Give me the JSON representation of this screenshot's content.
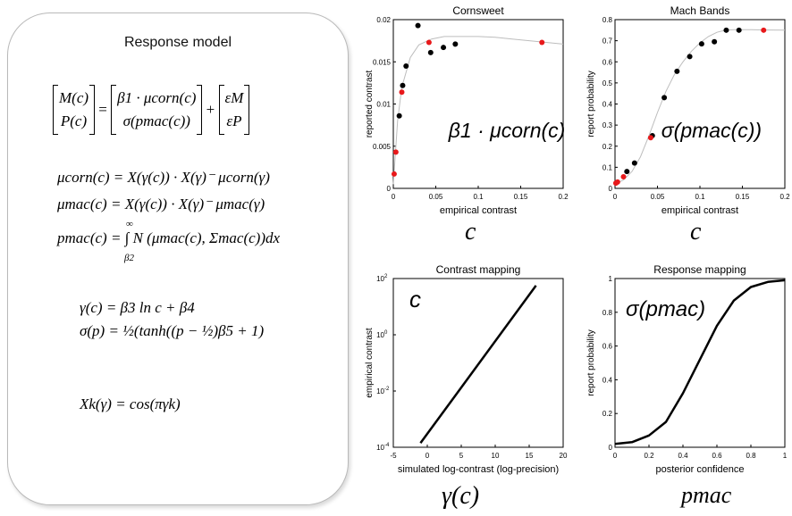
{
  "model": {
    "title": "Response model",
    "eq1": {
      "lhs_top": "M(c)",
      "lhs_bot": "P(c)",
      "rhs_top": "β1 · μcorn(c)",
      "rhs_bot": "σ(pmac(c))",
      "err_top": "εM",
      "err_bot": "εP"
    },
    "eq2": "μcorn(c) = X(γ(c)) · X(γ)⁻ μcorn(γ)",
    "eq3": "μmac(c) = X(γ(c)) · X(γ)⁻ μmac(γ)",
    "eq4": "pmac(c) = ∫ N (μmac(c), Σmac(c))dx",
    "eq4_lower": "β2",
    "eq4_upper": "∞",
    "eq5": "γ(c) = β3 ln c + β4",
    "eq6": "σ(p) = ½(tanh((p − ½)β5 + 1)",
    "eq7": "Xk(γ) = cos(πγk)"
  },
  "annotations": {
    "c1": "c",
    "c2": "c",
    "gamma": "γ(c)",
    "pmac": "pmac"
  },
  "chart_data": [
    {
      "id": "cornsweet",
      "type": "scatter",
      "title": "Cornsweet",
      "xlabel": "empirical contrast",
      "ylabel": "reported contrast",
      "xlim": [
        0,
        0.2
      ],
      "ylim": [
        0,
        0.02
      ],
      "xticks": [
        "0",
        "0.05",
        "0.1",
        "0.15",
        "0.2"
      ],
      "yticks": [
        "0",
        "0.005",
        "0.01",
        "0.015",
        "0.02"
      ],
      "inset": "β1 · μcorn(c)",
      "fit": {
        "x": [
          0.0,
          0.005,
          0.01,
          0.02,
          0.03,
          0.045,
          0.06,
          0.08,
          0.1,
          0.12,
          0.14,
          0.16,
          0.18,
          0.2
        ],
        "y": [
          0.0005,
          0.008,
          0.012,
          0.0155,
          0.017,
          0.0177,
          0.018,
          0.018,
          0.018,
          0.0179,
          0.0177,
          0.0175,
          0.0173,
          0.0171
        ]
      },
      "series": [
        {
          "color": "#000000",
          "x": [
            0.007,
            0.011,
            0.015,
            0.029,
            0.044,
            0.059,
            0.073
          ],
          "y": [
            0.0086,
            0.0122,
            0.0145,
            0.0193,
            0.0161,
            0.0167,
            0.0171
          ]
        },
        {
          "color": "#e8191b",
          "x": [
            0.001,
            0.003,
            0.01,
            0.042,
            0.175
          ],
          "y": [
            0.0017,
            0.0043,
            0.0114,
            0.0173,
            0.0173
          ]
        }
      ]
    },
    {
      "id": "mach",
      "type": "scatter",
      "title": "Mach Bands",
      "xlabel": "empirical contrast",
      "ylabel": "report probability",
      "xlim": [
        0,
        0.2
      ],
      "ylim": [
        0,
        0.8
      ],
      "xticks": [
        "0",
        "0.05",
        "0.1",
        "0.15",
        "0.2"
      ],
      "yticks": [
        "0",
        "0.1",
        "0.2",
        "0.3",
        "0.4",
        "0.5",
        "0.6",
        "0.7",
        "0.8"
      ],
      "inset": "σ(pmac(c))",
      "fit": {
        "x": [
          0.0,
          0.01,
          0.02,
          0.03,
          0.04,
          0.05,
          0.06,
          0.07,
          0.08,
          0.09,
          0.1,
          0.11,
          0.12,
          0.13,
          0.14,
          0.16,
          0.18,
          0.2
        ],
        "y": [
          0.02,
          0.04,
          0.08,
          0.15,
          0.25,
          0.36,
          0.46,
          0.54,
          0.6,
          0.65,
          0.69,
          0.72,
          0.74,
          0.75,
          0.752,
          0.752,
          0.751,
          0.75
        ]
      },
      "series": [
        {
          "color": "#000000",
          "x": [
            0.014,
            0.023,
            0.044,
            0.058,
            0.073,
            0.088,
            0.102,
            0.117,
            0.131,
            0.146
          ],
          "y": [
            0.08,
            0.12,
            0.25,
            0.43,
            0.555,
            0.625,
            0.685,
            0.695,
            0.75,
            0.75
          ]
        },
        {
          "color": "#e8191b",
          "x": [
            0.001,
            0.003,
            0.01,
            0.042,
            0.175
          ],
          "y": [
            0.025,
            0.03,
            0.055,
            0.24,
            0.75
          ]
        }
      ]
    },
    {
      "id": "contrast-mapping",
      "type": "line",
      "title": "Contrast mapping",
      "xlabel": "simulated log-contrast (log-precision)",
      "ylabel": "empirical contrast",
      "xlim": [
        -5,
        20
      ],
      "ylim_log10": [
        -4,
        2
      ],
      "xticks": [
        "-5",
        "0",
        "5",
        "10",
        "15",
        "20"
      ],
      "yticks_exp": [
        "-4",
        "-2",
        "0",
        "2"
      ],
      "inset": "c",
      "x": [
        -1,
        16
      ],
      "y_log10": [
        -3.85,
        1.75
      ]
    },
    {
      "id": "response-mapping",
      "type": "line",
      "title": "Response mapping",
      "xlabel": "posterior confidence",
      "ylabel": "report probability",
      "xlim": [
        0,
        1
      ],
      "ylim": [
        0,
        1
      ],
      "xticks": [
        "0",
        "0.2",
        "0.4",
        "0.6",
        "0.8",
        "1"
      ],
      "yticks": [
        "0",
        "0.2",
        "0.4",
        "0.6",
        "0.8",
        "1"
      ],
      "inset": "σ(pmac)",
      "x": [
        0,
        0.1,
        0.2,
        0.3,
        0.4,
        0.5,
        0.6,
        0.7,
        0.8,
        0.9,
        1.0
      ],
      "y": [
        0.02,
        0.03,
        0.07,
        0.15,
        0.32,
        0.52,
        0.72,
        0.87,
        0.95,
        0.98,
        0.99
      ]
    }
  ]
}
